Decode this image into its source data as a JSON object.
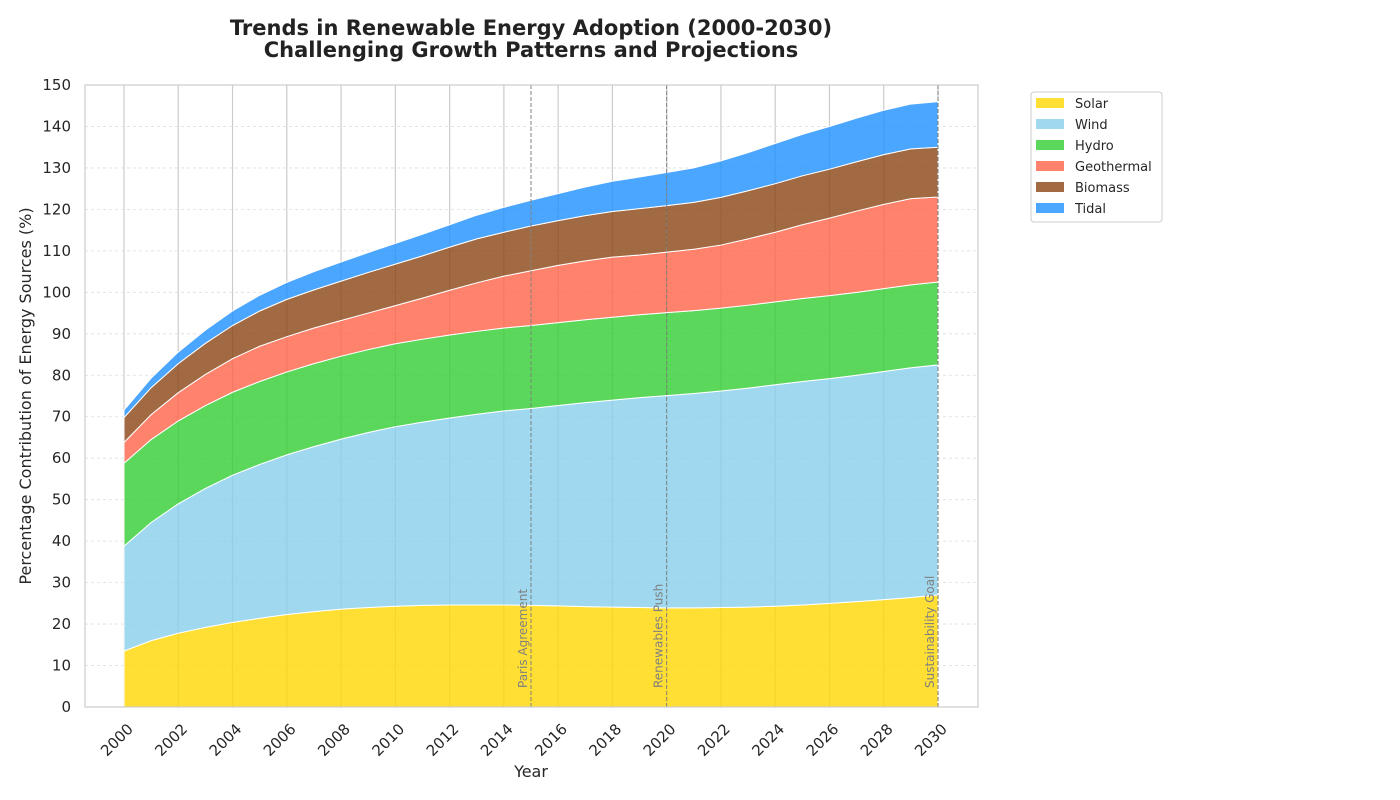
{
  "chart_data": {
    "type": "area",
    "stacked": true,
    "title": "Trends in Renewable Energy Adoption (2000-2030)",
    "subtitle": "Challenging Growth Patterns and Projections",
    "xlabel": "Year",
    "ylabel": "Percentage Contribution of Energy Sources (%)",
    "xlim": [
      2000,
      2030
    ],
    "ylim": [
      0,
      150
    ],
    "x_ticks": [
      "2000",
      "2002",
      "2004",
      "2006",
      "2008",
      "2010",
      "2012",
      "2014",
      "2016",
      "2018",
      "2020",
      "2022",
      "2024",
      "2026",
      "2028",
      "2030"
    ],
    "y_ticks": [
      "0",
      "10",
      "20",
      "30",
      "40",
      "50",
      "60",
      "70",
      "80",
      "90",
      "100",
      "110",
      "120",
      "130",
      "140",
      "150"
    ],
    "grid": true,
    "legend_position": "outside-right",
    "x": [
      2000,
      2001,
      2002,
      2003,
      2004,
      2005,
      2006,
      2007,
      2008,
      2009,
      2010,
      2011,
      2012,
      2013,
      2014,
      2015,
      2016,
      2017,
      2018,
      2019,
      2020,
      2021,
      2022,
      2023,
      2024,
      2025,
      2026,
      2027,
      2028,
      2029,
      2030
    ],
    "series": [
      {
        "name": "Solar",
        "color": "#FFD700",
        "values": [
          13.5,
          16,
          17.8,
          19.2,
          20.4,
          21.4,
          22.3,
          23,
          23.6,
          24,
          24.3,
          24.5,
          24.6,
          24.6,
          24.6,
          24.5,
          24.4,
          24.2,
          24.1,
          24,
          23.9,
          23.9,
          24,
          24.1,
          24.3,
          24.6,
          25,
          25.4,
          25.9,
          26.4,
          27
        ]
      },
      {
        "name": "Wind",
        "color": "#87CEEB",
        "values": [
          25.3,
          28.5,
          31.2,
          33.5,
          35.5,
          37.1,
          38.5,
          39.8,
          41,
          42.2,
          43.3,
          44.2,
          45.1,
          46,
          46.8,
          47.5,
          48.3,
          49.2,
          49.9,
          50.6,
          51.2,
          51.7,
          52.2,
          52.8,
          53.4,
          53.9,
          54.2,
          54.6,
          55,
          55.4,
          55.5
        ]
      },
      {
        "name": "Hydro",
        "color": "#32CD32",
        "values": [
          20,
          20,
          20,
          20,
          20,
          20,
          20,
          20,
          20,
          20,
          20,
          20,
          20,
          20,
          20,
          20,
          20,
          20,
          20,
          20,
          20,
          20,
          20,
          20,
          20,
          20,
          20,
          20,
          20,
          20,
          20
        ]
      },
      {
        "name": "Geothermal",
        "color": "#FF6347",
        "values": [
          5,
          6,
          6.8,
          7.5,
          8.1,
          8.5,
          8.5,
          8.6,
          8.6,
          8.8,
          9.2,
          9.9,
          10.8,
          11.7,
          12.5,
          13.2,
          13.8,
          14.2,
          14.5,
          14.4,
          14.6,
          14.8,
          15.2,
          16,
          16.8,
          17.8,
          18.7,
          19.6,
          20.3,
          20.8,
          20.5
        ]
      },
      {
        "name": "Biomass",
        "color": "#8B4513",
        "values": [
          6,
          6.5,
          7,
          7.5,
          8,
          8.5,
          9,
          9.2,
          9.5,
          9.8,
          10,
          10.2,
          10.4,
          10.6,
          10.6,
          10.8,
          10.8,
          10.9,
          11,
          11.2,
          11.2,
          11.3,
          11.5,
          11.6,
          11.7,
          11.8,
          11.8,
          11.9,
          12,
          12,
          12
        ]
      },
      {
        "name": "Tidal",
        "color": "#1E90FF",
        "values": [
          1.8,
          2.3,
          2.8,
          3.2,
          3.5,
          3.8,
          4.1,
          4.4,
          4.6,
          4.8,
          5,
          5.2,
          5.4,
          5.7,
          6,
          6.2,
          6.5,
          6.9,
          7.3,
          7.6,
          8,
          8.3,
          8.8,
          9.2,
          9.7,
          10,
          10.3,
          10.5,
          10.7,
          10.8,
          11
        ]
      }
    ],
    "annotations": [
      {
        "x": 2015,
        "label": "Paris Agreement"
      },
      {
        "x": 2020,
        "label": "Renewables Push"
      },
      {
        "x": 2030,
        "label": "Sustainability Goal"
      }
    ]
  }
}
